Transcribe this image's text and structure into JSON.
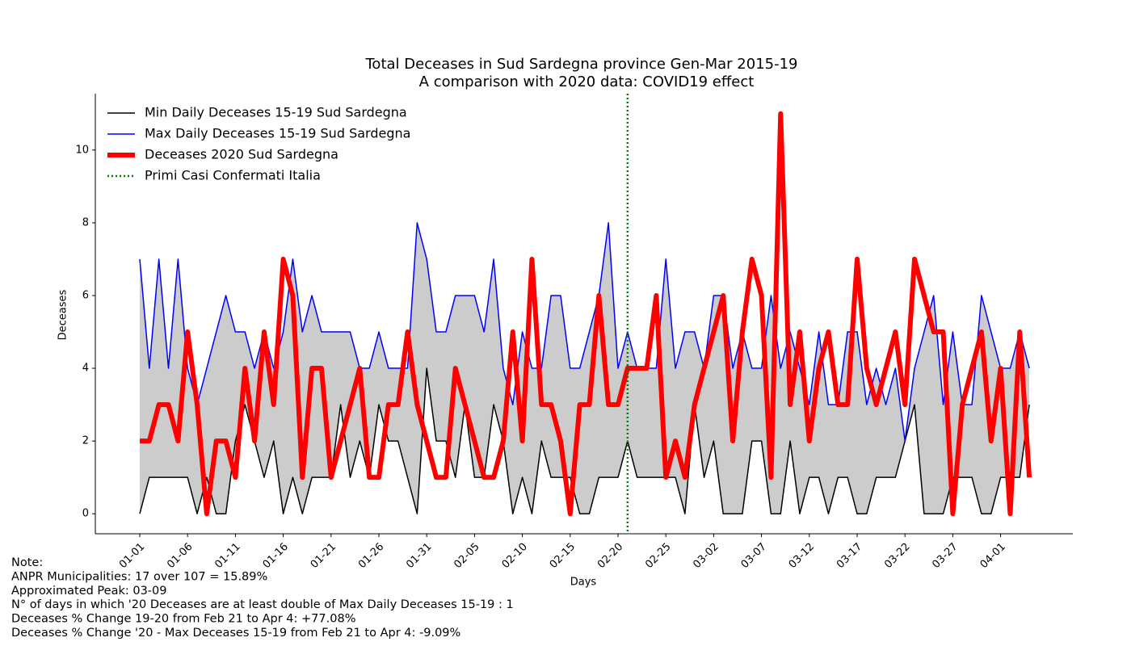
{
  "chart_data": {
    "type": "line",
    "title": "Total Deceases in Sud Sardegna province Gen-Mar 2015-19",
    "subtitle": "A comparison with 2020 data: COVID19 effect",
    "x_label": "Days",
    "y_label": "Deceases",
    "categories": [
      "01-01",
      null,
      null,
      null,
      null,
      "01-06",
      null,
      null,
      null,
      null,
      "01-11",
      null,
      null,
      null,
      null,
      "01-16",
      null,
      null,
      null,
      null,
      "01-21",
      null,
      null,
      null,
      null,
      "01-26",
      null,
      null,
      null,
      null,
      "01-31",
      null,
      null,
      null,
      null,
      "02-05",
      null,
      null,
      null,
      null,
      "02-10",
      null,
      null,
      null,
      null,
      "02-15",
      null,
      null,
      null,
      null,
      "02-20",
      null,
      null,
      null,
      null,
      "02-25",
      null,
      null,
      null,
      null,
      "03-02",
      null,
      null,
      null,
      null,
      "03-07",
      null,
      null,
      null,
      null,
      "03-12",
      null,
      null,
      null,
      null,
      "03-17",
      null,
      null,
      null,
      null,
      "03-22",
      null,
      null,
      null,
      null,
      "03-27",
      null,
      null,
      null,
      null,
      "04-01",
      null,
      null,
      null
    ],
    "series": [
      {
        "name": "Min Daily Deceases 15-19 Sud Sardegna",
        "color": "#000000",
        "width": 1.5,
        "values": [
          0,
          1,
          1,
          1,
          1,
          1,
          0,
          1,
          0,
          0,
          2,
          3,
          2,
          1,
          2,
          0,
          1,
          0,
          1,
          1,
          1,
          3,
          1,
          2,
          1,
          3,
          2,
          2,
          1,
          0,
          4,
          2,
          2,
          1,
          3,
          1,
          1,
          3,
          2,
          0,
          1,
          0,
          2,
          1,
          1,
          1,
          0,
          0,
          1,
          1,
          1,
          2,
          1,
          1,
          1,
          1,
          1,
          0,
          3,
          1,
          2,
          0,
          0,
          0,
          2,
          2,
          0,
          0,
          2,
          0,
          1,
          1,
          0,
          1,
          1,
          0,
          0,
          1,
          1,
          1,
          2,
          3,
          0,
          0,
          0,
          1,
          1,
          1,
          0,
          0,
          1,
          1,
          1,
          3
        ]
      },
      {
        "name": "Max Daily Deceases 15-19 Sud Sardegna",
        "color": "#0000ff",
        "width": 1.5,
        "values": [
          7,
          4,
          7,
          4,
          7,
          4,
          3,
          4,
          5,
          6,
          5,
          5,
          4,
          5,
          4,
          5,
          7,
          5,
          6,
          5,
          5,
          5,
          5,
          4,
          4,
          5,
          4,
          4,
          4,
          8,
          7,
          5,
          5,
          6,
          6,
          6,
          5,
          7,
          4,
          3,
          5,
          4,
          4,
          6,
          6,
          4,
          4,
          5,
          6,
          8,
          4,
          5,
          4,
          4,
          4,
          7,
          4,
          5,
          5,
          4,
          6,
          6,
          4,
          5,
          4,
          4,
          6,
          4,
          5,
          4,
          3,
          5,
          3,
          3,
          5,
          5,
          3,
          4,
          3,
          4,
          2,
          4,
          5,
          6,
          3,
          5,
          3,
          3,
          6,
          5,
          4,
          4,
          5,
          4
        ]
      },
      {
        "name": "Deceases 2020 Sud Sardegna",
        "color": "#ff0000",
        "width": 6,
        "values": [
          2,
          2,
          3,
          3,
          2,
          5,
          3,
          0,
          2,
          2,
          1,
          4,
          2,
          5,
          3,
          7,
          6,
          1,
          4,
          4,
          1,
          2,
          3,
          4,
          1,
          1,
          3,
          3,
          5,
          3,
          2,
          1,
          1,
          4,
          3,
          2,
          1,
          1,
          2,
          5,
          2,
          7,
          3,
          3,
          2,
          0,
          3,
          3,
          6,
          3,
          3,
          4,
          4,
          4,
          6,
          1,
          2,
          1,
          3,
          4,
          5,
          6,
          2,
          5,
          7,
          6,
          1,
          11,
          3,
          5,
          2,
          4,
          5,
          3,
          3,
          7,
          4,
          3,
          4,
          5,
          3,
          7,
          6,
          5,
          5,
          0,
          3,
          4,
          5,
          2,
          4,
          0,
          5,
          1
        ]
      }
    ],
    "fill_between": {
      "color": "#cccccc"
    },
    "vline": {
      "name": "Primi Casi Confermati Italia",
      "color": "#008000",
      "at": 51
    },
    "ylim": [
      -0.55,
      11.55
    ],
    "yticks": [
      0,
      2,
      4,
      6,
      8,
      10
    ],
    "legend": "upper-left",
    "notes": [
      "Note:",
      "ANPR Municipalities: 17 over 107 = 15.89%",
      "Approximated Peak: 03-09",
      "N° of  days in which '20 Deceases are at least double of Max Daily Deceases 15-19   : 1",
      "Deceases % Change 19-20 from Feb 21 to Apr 4: +77.08%",
      "Deceases % Change '20 - Max Deceases 15-19 from Feb 21 to Apr 4:  -9.09%"
    ]
  }
}
